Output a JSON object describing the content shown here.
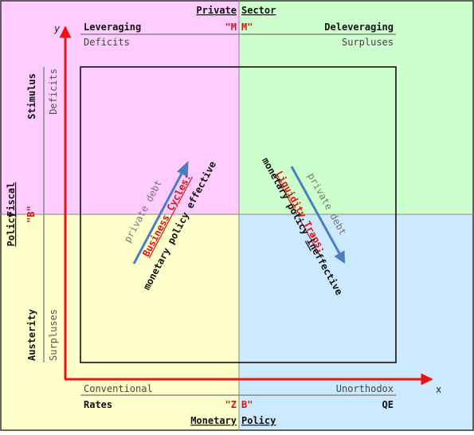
{
  "colors": {
    "top_left": "#ffccff",
    "top_right": "#ccffcc",
    "bottom_left": "#ffffcc",
    "bottom_right": "#cce9ff",
    "axis": "#ee1111",
    "accent_red": "#dd1111",
    "arrow_blue": "#4a7ec0",
    "frame": "#111111",
    "text_dark": "#111111",
    "text_gray": "#555555"
  },
  "header": {
    "private": "Private",
    "sector": "Sector"
  },
  "footer": {
    "monetary": "Monetary",
    "policy": "Policy"
  },
  "top": {
    "leveraging": "Leveraging",
    "deleveraging": "Deleveraging",
    "m_left": "\"M",
    "m_right": "M\"",
    "deficits": "Deficits",
    "surpluses": "Surpluses"
  },
  "bottom": {
    "conventional": "Conventional",
    "unorthodox": "Unorthodox",
    "rates": "Rates",
    "qe": "QE",
    "z_left": "\"Z",
    "b_right": "B\""
  },
  "left": {
    "fiscal": "Fiscal",
    "policy": "Policy",
    "stimulus": "Stimulus",
    "austerity": "Austerity",
    "b_marker": "\"B\"",
    "deficits": "Deficits",
    "surpluses": "Surpluses"
  },
  "axes": {
    "x": "x",
    "y": "y"
  },
  "left_arrow": {
    "private_debt": "private debt",
    "business_cycles": "Business Cycles:",
    "policy_effective": "monetary policy effective"
  },
  "right_arrow": {
    "private_debt": "private debt",
    "liquidity_traps": "Liquidity Traps:",
    "policy_pre": "monetary policy ",
    "policy_in": "in",
    "policy_effective": "effective"
  }
}
